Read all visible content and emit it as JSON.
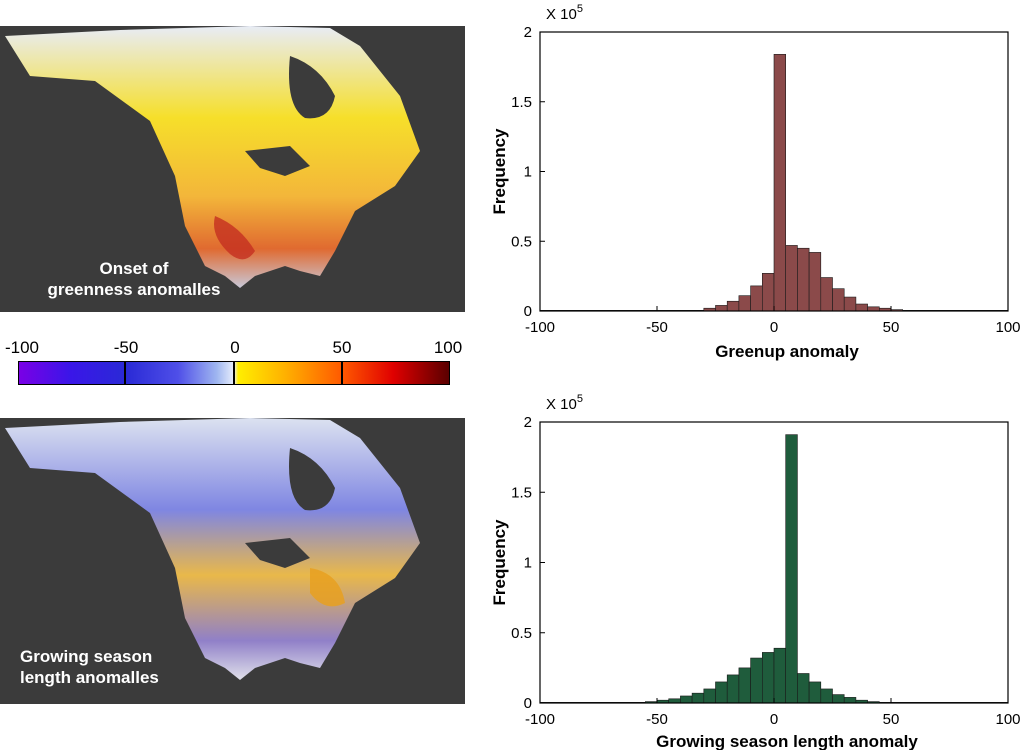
{
  "maps": [
    {
      "caption_line1": "Onset of",
      "caption_line2": "greenness anomalles"
    },
    {
      "caption_line1": "Growing season",
      "caption_line2": "length anomalles"
    }
  ],
  "colorbar": {
    "ticks": [
      "-100",
      "-50",
      "0",
      "50",
      "100"
    ],
    "colors": [
      "#7a00e6",
      "#2a2ad6",
      "#e8eefc",
      "#ffee00",
      "#ff5a00",
      "#e00000",
      "#5a0000"
    ]
  },
  "chart_data": [
    {
      "type": "bar",
      "title": "",
      "xlabel": "Greenup anomaly",
      "ylabel": "Frequency",
      "scale_note_base": "X 10",
      "scale_note_exp": "5",
      "xlim": [
        -100,
        100
      ],
      "ylim": [
        0,
        2
      ],
      "xticks": [
        "-100",
        "-50",
        "0",
        "50",
        "100"
      ],
      "yticks": [
        "0",
        "0.5",
        "1",
        "1.5",
        "2"
      ],
      "bar_color": "#8b4a4a",
      "bin_width": 5,
      "x": [
        -100,
        -95,
        -90,
        -85,
        -80,
        -75,
        -70,
        -65,
        -60,
        -55,
        -50,
        -45,
        -40,
        -35,
        -30,
        -25,
        -20,
        -15,
        -10,
        -5,
        0,
        5,
        10,
        15,
        20,
        25,
        30,
        35,
        40,
        45,
        50,
        55,
        60,
        65,
        70,
        75,
        80,
        85,
        90,
        95
      ],
      "values": [
        0.005,
        0.005,
        0.005,
        0.005,
        0.005,
        0.005,
        0.005,
        0.005,
        0.005,
        0.005,
        0.005,
        0.005,
        0.005,
        0.005,
        0.02,
        0.04,
        0.07,
        0.11,
        0.18,
        0.27,
        1.84,
        0.47,
        0.45,
        0.42,
        0.24,
        0.16,
        0.1,
        0.05,
        0.03,
        0.02,
        0.01,
        0.005,
        0.005,
        0.005,
        0.005,
        0.005,
        0.005,
        0.005,
        0.005,
        0.005
      ]
    },
    {
      "type": "bar",
      "title": "",
      "xlabel": "Growing season length anomaly",
      "ylabel": "Frequency",
      "scale_note_base": "X 10",
      "scale_note_exp": "5",
      "xlim": [
        -100,
        100
      ],
      "ylim": [
        0,
        2
      ],
      "xticks": [
        "-100",
        "-50",
        "0",
        "50",
        "100"
      ],
      "yticks": [
        "0",
        "0.5",
        "1",
        "1.5",
        "2"
      ],
      "bar_color": "#1f5c3c",
      "bin_width": 5,
      "x": [
        -100,
        -95,
        -90,
        -85,
        -80,
        -75,
        -70,
        -65,
        -60,
        -55,
        -50,
        -45,
        -40,
        -35,
        -30,
        -25,
        -20,
        -15,
        -10,
        -5,
        0,
        5,
        10,
        15,
        20,
        25,
        30,
        35,
        40,
        45,
        50,
        55,
        60,
        65,
        70,
        75,
        80,
        85,
        90,
        95
      ],
      "values": [
        0.005,
        0.005,
        0.005,
        0.005,
        0.005,
        0.005,
        0.005,
        0.005,
        0.005,
        0.01,
        0.02,
        0.03,
        0.05,
        0.07,
        0.1,
        0.15,
        0.2,
        0.25,
        0.32,
        0.36,
        0.39,
        1.91,
        0.21,
        0.15,
        0.1,
        0.06,
        0.04,
        0.02,
        0.01,
        0.005,
        0.005,
        0.005,
        0.005,
        0.005,
        0.005,
        0.005,
        0.005,
        0.005,
        0.005,
        0.005
      ]
    }
  ]
}
